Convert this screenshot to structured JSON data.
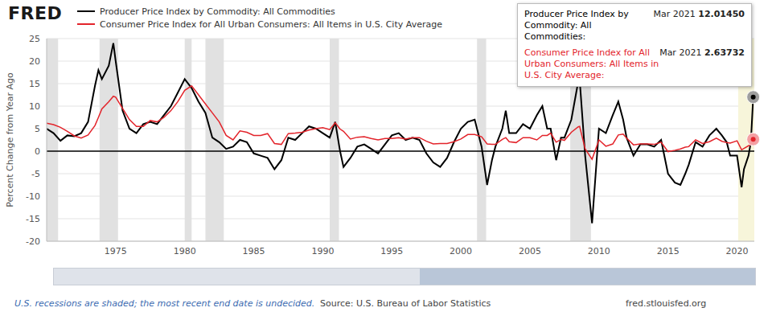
{
  "chart_data": {
    "type": "line",
    "logo": "FRED",
    "x": [
      1970.0,
      1970.5,
      1971.0,
      1971.5,
      1972.0,
      1972.5,
      1973.0,
      1973.5,
      1973.75,
      1974.0,
      1974.5,
      1974.83,
      1975.0,
      1975.5,
      1976.0,
      1976.5,
      1977.0,
      1977.5,
      1978.0,
      1978.5,
      1979.0,
      1979.5,
      1980.0,
      1980.5,
      1981.0,
      1981.5,
      1982.0,
      1982.5,
      1983.0,
      1983.5,
      1984.0,
      1984.5,
      1985.0,
      1985.5,
      1986.0,
      1986.5,
      1987.0,
      1987.5,
      1988.0,
      1988.5,
      1989.0,
      1989.5,
      1990.0,
      1990.5,
      1990.9,
      1991.25,
      1991.5,
      1992.0,
      1992.5,
      1993.0,
      1993.5,
      1994.0,
      1994.5,
      1995.0,
      1995.5,
      1996.0,
      1996.5,
      1997.0,
      1997.5,
      1998.0,
      1998.5,
      1999.0,
      1999.5,
      2000.0,
      2000.5,
      2001.0,
      2001.5,
      2001.9,
      2002.25,
      2002.5,
      2003.0,
      2003.25,
      2003.5,
      2004.0,
      2004.5,
      2005.0,
      2005.5,
      2005.9,
      2006.25,
      2006.5,
      2006.9,
      2007.25,
      2007.5,
      2008.0,
      2008.5,
      2008.6,
      2009.0,
      2009.5,
      2010.0,
      2010.5,
      2011.0,
      2011.4,
      2011.75,
      2012.0,
      2012.5,
      2013.0,
      2013.5,
      2014.0,
      2014.5,
      2015.0,
      2015.5,
      2015.9,
      2016.25,
      2016.5,
      2017.0,
      2017.5,
      2018.0,
      2018.5,
      2018.9,
      2019.25,
      2019.5,
      2020.0,
      2020.33,
      2020.5,
      2020.83,
      2021.0,
      2021.17
    ],
    "series": [
      {
        "name": "Producer Price Index by Commodity: All Commodities",
        "color": "#000000",
        "values": [
          5.0,
          4.0,
          2.3,
          3.5,
          3.3,
          4.0,
          6.5,
          14.5,
          18,
          16,
          19,
          24,
          20,
          9,
          5,
          4,
          6,
          6.5,
          6,
          8,
          10,
          13,
          16,
          14,
          11,
          8.5,
          3,
          2,
          0.5,
          1,
          2.5,
          2,
          -0.5,
          -1,
          -1.5,
          -4,
          -2,
          3,
          2.5,
          4,
          5.5,
          5,
          4,
          3,
          6.5,
          0,
          -3.5,
          -1.5,
          1,
          1.5,
          0.5,
          -0.5,
          1.5,
          3.5,
          4,
          2.5,
          3,
          2.5,
          -0.5,
          -2.5,
          -3.5,
          -1.5,
          2,
          5,
          6.5,
          7,
          1,
          -7.5,
          -2,
          1,
          5,
          9,
          4,
          4,
          6,
          5,
          8,
          10,
          5,
          5,
          -2,
          3,
          3,
          7,
          15.5,
          16,
          -1,
          -16,
          5,
          4,
          8,
          11,
          7,
          3,
          -1,
          1.5,
          1.5,
          1,
          2.5,
          -5,
          -7,
          -7.5,
          -5,
          -3,
          2,
          1,
          3.5,
          5,
          3.5,
          2,
          -1,
          -1,
          -8,
          -4,
          -1,
          2,
          12.0145
        ]
      },
      {
        "name": "Consumer Price Index for All Urban Consumers: All Items in U.S. City Average",
        "color": "#e3242b",
        "values": [
          6.2,
          5.9,
          5.3,
          4.4,
          3.4,
          2.9,
          3.6,
          5.7,
          7.5,
          9.4,
          11,
          12.2,
          12,
          9.5,
          7,
          5.5,
          5.5,
          6.8,
          6.5,
          7.5,
          9,
          11,
          13.5,
          14.5,
          12.5,
          10.5,
          8.5,
          6.5,
          3.5,
          2.5,
          4.5,
          4.2,
          3.5,
          3.5,
          3.9,
          1.7,
          1.5,
          3.9,
          4,
          4.2,
          4.7,
          5,
          5.2,
          4.8,
          6.3,
          4.9,
          4.4,
          2.7,
          3.1,
          3.2,
          2.8,
          2.5,
          2.8,
          2.8,
          3,
          2.7,
          3,
          3,
          2.2,
          1.6,
          1.7,
          1.7,
          2.1,
          2.7,
          3.7,
          3.7,
          3.2,
          1.6,
          1.5,
          1.5,
          2.6,
          3,
          2.1,
          1.9,
          3,
          3,
          2.5,
          3.5,
          3.5,
          4,
          2,
          2.6,
          2.4,
          4.2,
          5.4,
          5.5,
          0.5,
          -1.8,
          2.5,
          1.1,
          1.6,
          3.6,
          3.8,
          2.9,
          1.4,
          1.6,
          1.6,
          1.5,
          2,
          -0.1,
          0.2,
          0.5,
          0.9,
          1,
          2.5,
          1.7,
          2.1,
          2.9,
          2.2,
          1.9,
          1.8,
          2.3,
          0.3,
          0.6,
          1.2,
          1.4,
          2.63732
        ]
      }
    ],
    "xlim": [
      1970,
      2021.25
    ],
    "xticks": [
      1975,
      1980,
      1985,
      1990,
      1995,
      2000,
      2005,
      2010,
      2015,
      2020
    ],
    "ylim": [
      -20,
      25
    ],
    "yticks": [
      -20,
      -15,
      -10,
      -5,
      0,
      5,
      10,
      15,
      20,
      25
    ],
    "y_label": "Percent Change from Year Ago",
    "grid": true,
    "recessions": [
      {
        "start": 1969.92,
        "end": 1970.83,
        "color": "#e1e1e1"
      },
      {
        "start": 1973.83,
        "end": 1975.17,
        "color": "#e1e1e1"
      },
      {
        "start": 1980.0,
        "end": 1980.5,
        "color": "#e1e1e1"
      },
      {
        "start": 1981.5,
        "end": 1982.83,
        "color": "#e1e1e1"
      },
      {
        "start": 1990.5,
        "end": 1991.17,
        "color": "#e1e1e1"
      },
      {
        "start": 2001.17,
        "end": 2001.83,
        "color": "#e1e1e1"
      },
      {
        "start": 2007.92,
        "end": 2009.42,
        "color": "#e1e1e1"
      },
      {
        "start": 2020.08,
        "end": 2021.25,
        "color": "#f7f5da"
      }
    ],
    "tooltip": {
      "rows": [
        {
          "label": "Producer Price Index by Commodity: All Commodities:",
          "date": "Mar 2021",
          "value": {
            "value": 12.0145,
            "label": "12.01450"
          },
          "color": "#000000"
        },
        {
          "label": "Consumer Price Index for All Urban Consumers: All Items in U.S. City Average:",
          "date": "Mar 2021",
          "value": {
            "value": 2.63732,
            "label": "2.63732"
          },
          "color": "#e3242b"
        }
      ]
    },
    "note": "U.S. recessions are shaded; the most recent end date is undecided.",
    "source": "Source: U.S. Bureau of Labor Statistics",
    "site": "fred.stlouisfed.org"
  }
}
